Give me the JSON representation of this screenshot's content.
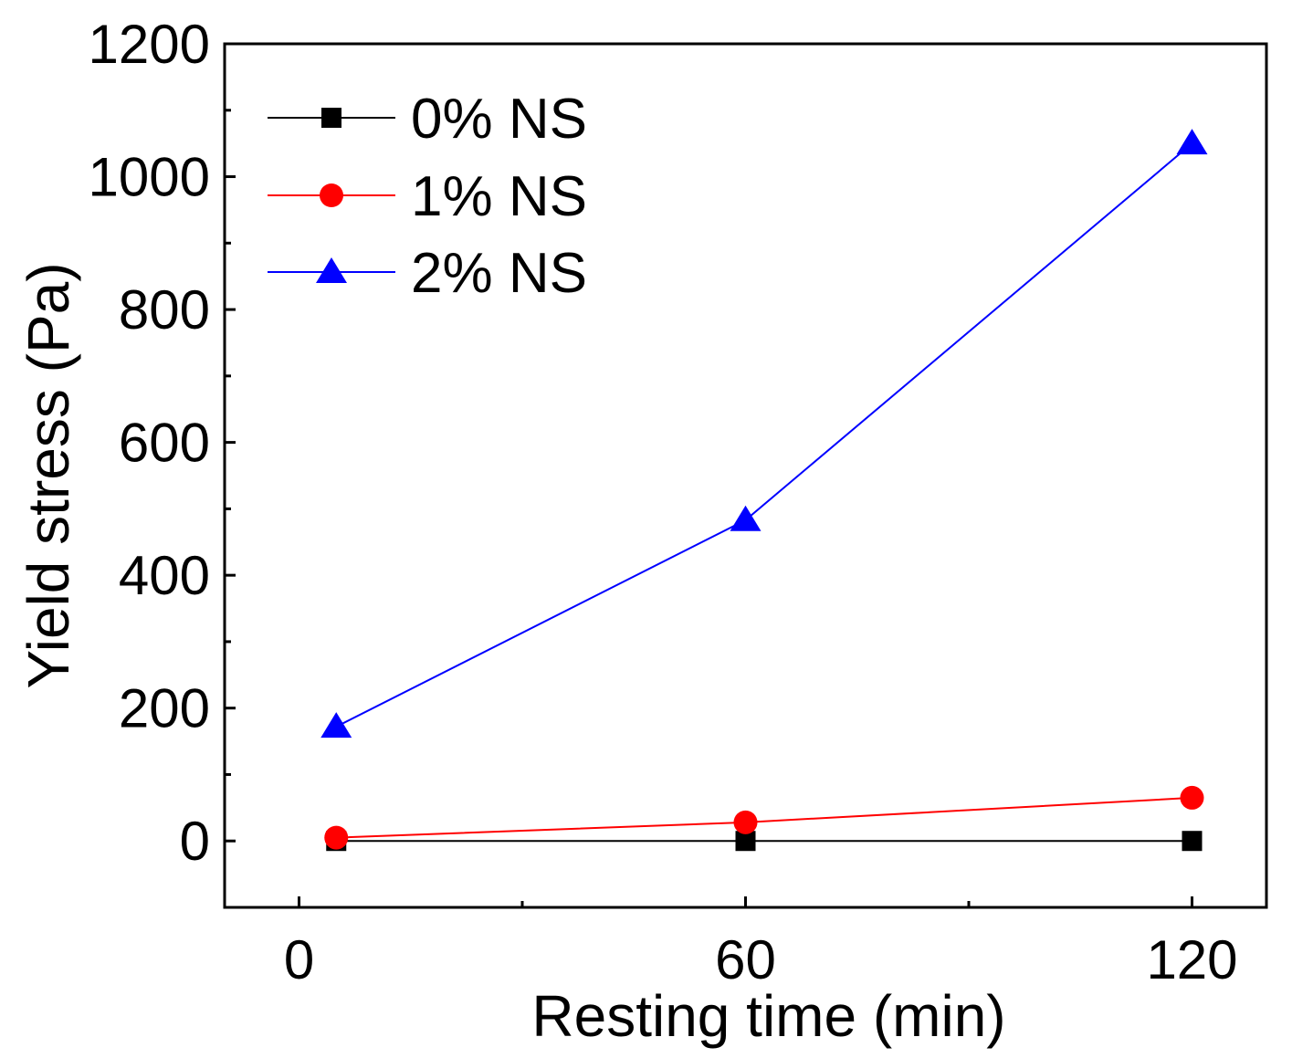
{
  "chart_data": {
    "type": "line",
    "title": "",
    "xlabel": "Resting time (min)",
    "ylabel": "Yield stress (Pa)",
    "xlim": [
      -10,
      130
    ],
    "ylim": [
      -100,
      1200
    ],
    "x_ticks": [
      0,
      60,
      120
    ],
    "x_tick_labels": [
      "0",
      "60",
      "120"
    ],
    "y_ticks": [
      0,
      200,
      400,
      600,
      800,
      1000,
      1200
    ],
    "y_tick_labels": [
      "0",
      "200",
      "400",
      "600",
      "800",
      "1000",
      "1200"
    ],
    "legend_position": "top-left",
    "grid": false,
    "series": [
      {
        "name": "0% NS",
        "color": "#000000",
        "marker": "square",
        "x": [
          5,
          60,
          120
        ],
        "y": [
          0,
          0,
          0
        ]
      },
      {
        "name": "1% NS",
        "color": "#ff0000",
        "marker": "circle",
        "x": [
          5,
          60,
          120
        ],
        "y": [
          5,
          28,
          65
        ]
      },
      {
        "name": "2% NS",
        "color": "#0000ff",
        "marker": "triangle",
        "x": [
          5,
          60,
          120
        ],
        "y": [
          172,
          483,
          1050
        ]
      }
    ]
  }
}
